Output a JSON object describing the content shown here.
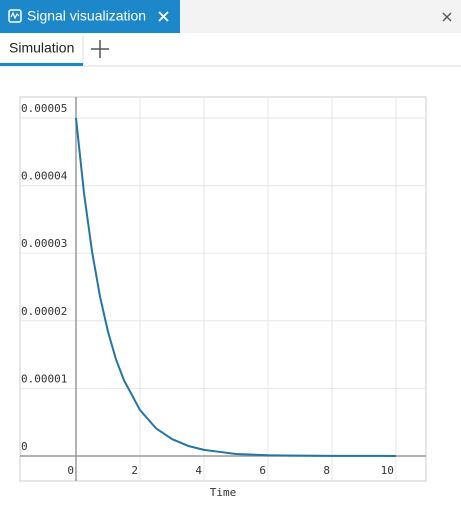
{
  "window": {
    "tab_title": "Signal visualization",
    "subtab": "Simulation"
  },
  "chart_data": {
    "type": "line",
    "x_label": "Time",
    "x": [
      0,
      0.25,
      0.5,
      0.75,
      1,
      1.25,
      1.5,
      2,
      2.5,
      3,
      3.5,
      4,
      4.5,
      5,
      5.5,
      6,
      6.5,
      7,
      7.5,
      8,
      8.5,
      9,
      9.5,
      10
    ],
    "series": [
      {
        "color": "#2474a6",
        "values": [
          5e-05,
          3.89e-05,
          3.03e-05,
          2.36e-05,
          1.84e-05,
          1.43e-05,
          1.12e-05,
          6.8e-06,
          4.1e-06,
          2.5e-06,
          1.5e-06,
          9e-07,
          6e-07,
          3e-07,
          2e-07,
          1e-07,
          8e-08,
          5e-08,
          3e-08,
          2e-08,
          1e-08,
          1e-08,
          1e-08,
          0
        ]
      }
    ],
    "xlim": [
      -1.75,
      10.94
    ],
    "ylim": [
      -3.7e-06,
      5.31e-05
    ],
    "xticks": [
      0,
      2,
      4,
      6,
      8,
      10
    ],
    "yticks": [
      0,
      1e-05,
      2e-05,
      3e-05,
      4e-05,
      5e-05
    ],
    "grid": true
  }
}
